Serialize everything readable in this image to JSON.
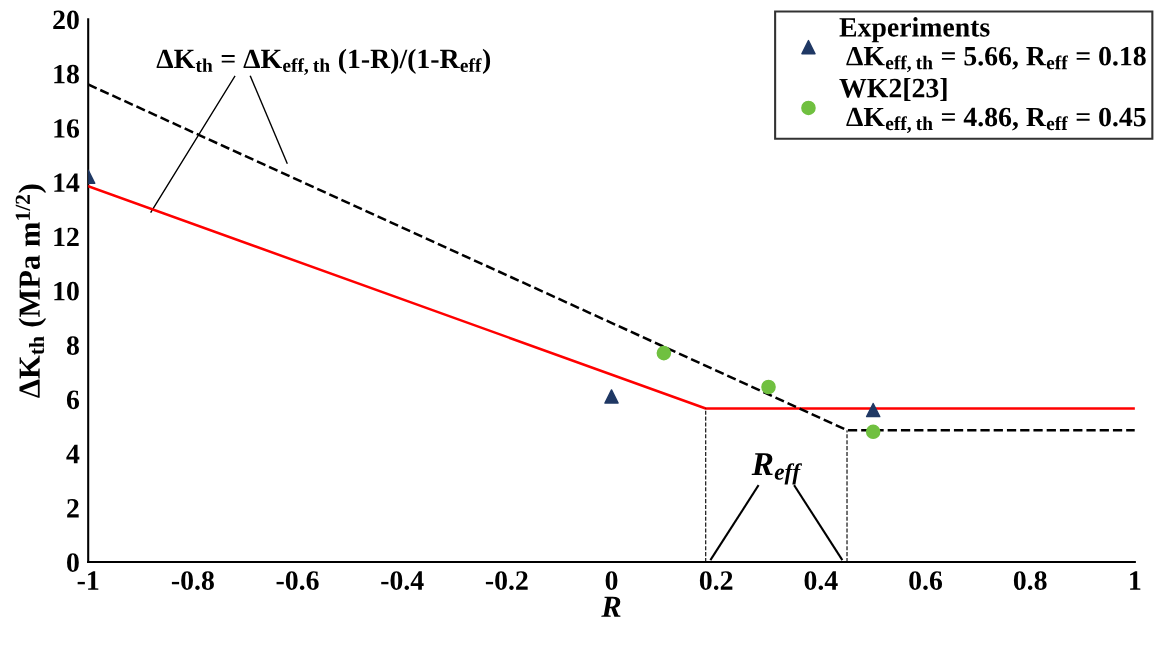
{
  "chart_data": {
    "type": "scatter",
    "xlabel": "R",
    "ylabel": "ΔK$_{th}$ (MPa m$^{1/2}$)",
    "xlim": [
      -1,
      1
    ],
    "ylim": [
      0,
      20
    ],
    "xticks": [
      -1,
      -0.8,
      -0.6,
      -0.4,
      -0.2,
      0,
      0.2,
      0.4,
      0.6,
      0.8,
      1
    ],
    "yticks": [
      0,
      2,
      4,
      6,
      8,
      10,
      12,
      14,
      16,
      18,
      20
    ],
    "grid": false,
    "legend": "top right",
    "series": [
      {
        "name": "Experiments\n ΔK$_{eff,th}$ = 5.66, R$_{eff}$ = 0.18",
        "marker": "triangle",
        "color": "#1f3864",
        "x": [
          -1,
          0,
          0.5
        ],
        "values": [
          14.2,
          6.1,
          5.6
        ]
      },
      {
        "name": "WK2[23]\n ΔK$_{eff,th}$ = 4.86, R$_{eff}$ = 0.45",
        "marker": "circle",
        "color": "#70c040",
        "x": [
          0.1,
          0.3,
          0.5
        ],
        "values": [
          7.7,
          6.45,
          4.8
        ]
      },
      {
        "type": "line",
        "color": "#ff0000",
        "line_style": "solid",
        "x": [
          -1,
          0.18,
          1
        ],
        "values": [
          13.85,
          5.66,
          5.66
        ]
      },
      {
        "type": "line",
        "color": "#000000",
        "line_style": "dashed",
        "x": [
          -1,
          0.45,
          1
        ],
        "values": [
          17.6,
          4.86,
          4.86
        ]
      },
      {
        "type": "line",
        "color": "#000000",
        "line_style": "dashed",
        "x": [
          0.18,
          0.18
        ],
        "values": [
          0,
          5.66
        ]
      },
      {
        "type": "line",
        "color": "#000000",
        "line_style": "dashed",
        "x": [
          0.45,
          0.45
        ],
        "values": [
          0,
          4.86
        ]
      }
    ],
    "annotations": [
      {
        "text": "ΔK$_{th}$ = ΔK$_{eff,th}$ (1-R)/(1-R$_{eff}$)",
        "x": -0.88,
        "y": 12.9
      },
      "R$_{eff}$"
    ]
  }
}
